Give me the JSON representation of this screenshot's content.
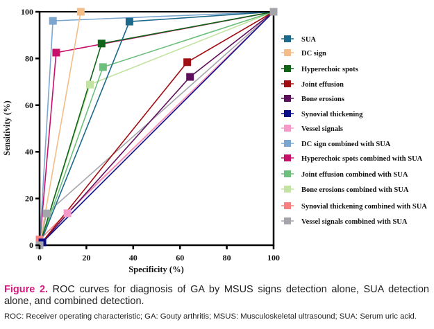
{
  "chart_data": {
    "type": "line",
    "title": "",
    "xlabel": "Specificity (%)",
    "ylabel": "Sensitivity (%)",
    "xlim": [
      0,
      100
    ],
    "ylim": [
      0,
      100
    ],
    "xticks": [
      "0",
      "20",
      "40",
      "60",
      "80",
      "100"
    ],
    "yticks": [
      "0",
      "20",
      "40",
      "60",
      "80",
      "100"
    ],
    "grid": false,
    "legend_position": "right",
    "series": [
      {
        "name": "SUA",
        "color": "#1b6a8c",
        "x": [
          0,
          38.4,
          100
        ],
        "y": [
          0,
          95.8,
          100
        ]
      },
      {
        "name": "DC sign",
        "color": "#f3bd88",
        "x": [
          0,
          17.6,
          100
        ],
        "y": [
          0,
          100,
          100
        ]
      },
      {
        "name": "Hyperechoic spots",
        "color": "#0f6418",
        "x": [
          0,
          26.5,
          100
        ],
        "y": [
          0,
          86.4,
          100
        ]
      },
      {
        "name": "Joint effusion",
        "color": "#a00d12",
        "x": [
          0,
          63.1,
          100
        ],
        "y": [
          0,
          78.4,
          100
        ]
      },
      {
        "name": "Bone erosions",
        "color": "#5e0f5c",
        "x": [
          0,
          64.3,
          100
        ],
        "y": [
          0,
          72.1,
          100
        ]
      },
      {
        "name": "Synovial thickening",
        "color": "#0b0d8a",
        "x": [
          0,
          1.2,
          100
        ],
        "y": [
          0,
          1.2,
          100
        ]
      },
      {
        "name": "Vessel signals",
        "color": "#f59ac8",
        "x": [
          0,
          11.9,
          100
        ],
        "y": [
          0,
          13.7,
          100
        ]
      },
      {
        "name": "DC sign combined with SUA",
        "color": "#7ba6d0",
        "x": [
          0,
          5.7,
          100
        ],
        "y": [
          0,
          96.1,
          100
        ]
      },
      {
        "name": "Hyperechoic spots combined with SUA",
        "color": "#c80f6a",
        "x": [
          0,
          7.1,
          100
        ],
        "y": [
          0,
          82.5,
          100
        ]
      },
      {
        "name": "Joint effusion combined with SUA",
        "color": "#6cbf7c",
        "x": [
          0,
          27.1,
          100
        ],
        "y": [
          0,
          76.3,
          100
        ]
      },
      {
        "name": "Bone erosions combined with SUA",
        "color": "#c3e3a2",
        "x": [
          0,
          21.5,
          100
        ],
        "y": [
          0,
          68.8,
          100
        ]
      },
      {
        "name": "Synovial thickening combined with SUA",
        "color": "#f68080",
        "x": [
          0,
          0,
          100
        ],
        "y": [
          0,
          2.4,
          100
        ]
      },
      {
        "name": "Vessel signals combined with SUA",
        "color": "#a4a4ab",
        "x": [
          0,
          3.0,
          100
        ],
        "y": [
          0,
          13.6,
          100
        ]
      }
    ]
  },
  "caption": {
    "figure_label": "Figure 2.",
    "text": " ROC curves for diagnosis of GA by MSUS signs detection alone, SUA detection alone, and combined detection.",
    "abbreviations": "ROC: Receiver operating characteristic; GA: Gouty arthritis; MSUS: Musculoskeletal ultrasound; SUA: Serum uric acid."
  }
}
